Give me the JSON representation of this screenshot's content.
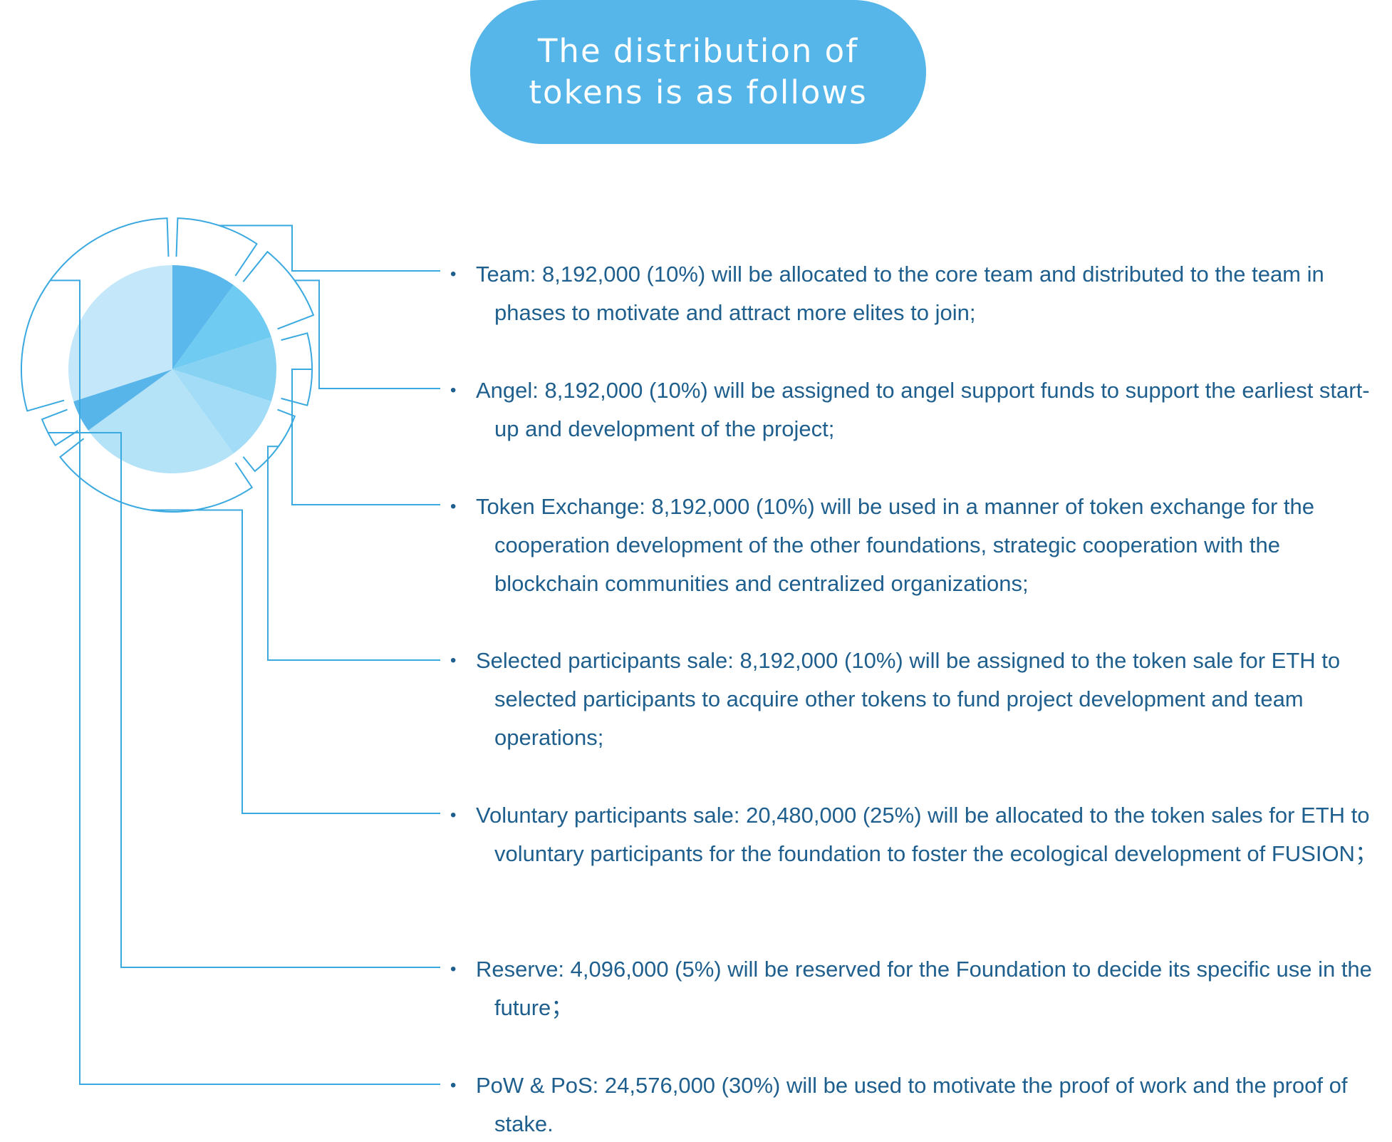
{
  "header": {
    "title": "The distribution of tokens is as follows"
  },
  "colors": {
    "accent": "#56b6e9",
    "text": "#1f5f8e",
    "leader_line": "#3aa9e0"
  },
  "chart_data": {
    "type": "pie",
    "unit": "tokens",
    "slices": [
      {
        "label": "Team",
        "value": 8192000,
        "percent": 10,
        "color": "#5ab8ec"
      },
      {
        "label": "Angel",
        "value": 8192000,
        "percent": 10,
        "color": "#6fcbf1"
      },
      {
        "label": "Token Exchange",
        "value": 8192000,
        "percent": 10,
        "color": "#87d2f3"
      },
      {
        "label": "Selected participants sale",
        "value": 8192000,
        "percent": 10,
        "color": "#a2dcf6"
      },
      {
        "label": "Voluntary participants sale",
        "value": 20480000,
        "percent": 25,
        "color": "#b4e2f7"
      },
      {
        "label": "Reserve",
        "value": 4096000,
        "percent": 5,
        "color": "#58b5ea"
      },
      {
        "label": "PoW & PoS",
        "value": 24576000,
        "percent": 30,
        "color": "#c4e8f9"
      }
    ]
  },
  "legend": {
    "bullet": "•",
    "items": [
      {
        "text": "Team:  8,192,000 (10%) will be allocated to the core team and distributed to the team in phases to motivate and attract more elites to join;"
      },
      {
        "text": "Angel: 8,192,000 (10%) will be assigned to angel support funds to support the earliest start-up and development of the project;"
      },
      {
        "text": "Token Exchange: 8,192,000 (10%) will be used in a manner of token exchange for the cooperation development of the other foundations, strategic cooperation with the blockchain communities and centralized organizations;"
      },
      {
        "text": "Selected participants sale: 8,192,000 (10%) will be assigned to the token sale for ETH to selected participants to acquire other tokens to fund project  development and team operations;"
      },
      {
        "text": "Voluntary participants sale: 20,480,000 (25%) will be allocated to the token sales for ETH to voluntary participants for the foundation to foster the ecological development of FUSION；"
      },
      {
        "text": "Reserve: 4,096,000 (5%) will be reserved for the Foundation to decide its specific use in the future；"
      },
      {
        "text": "PoW & PoS: 24,576,000 (30%) will be used to motivate the proof of work and the proof of stake."
      }
    ]
  }
}
